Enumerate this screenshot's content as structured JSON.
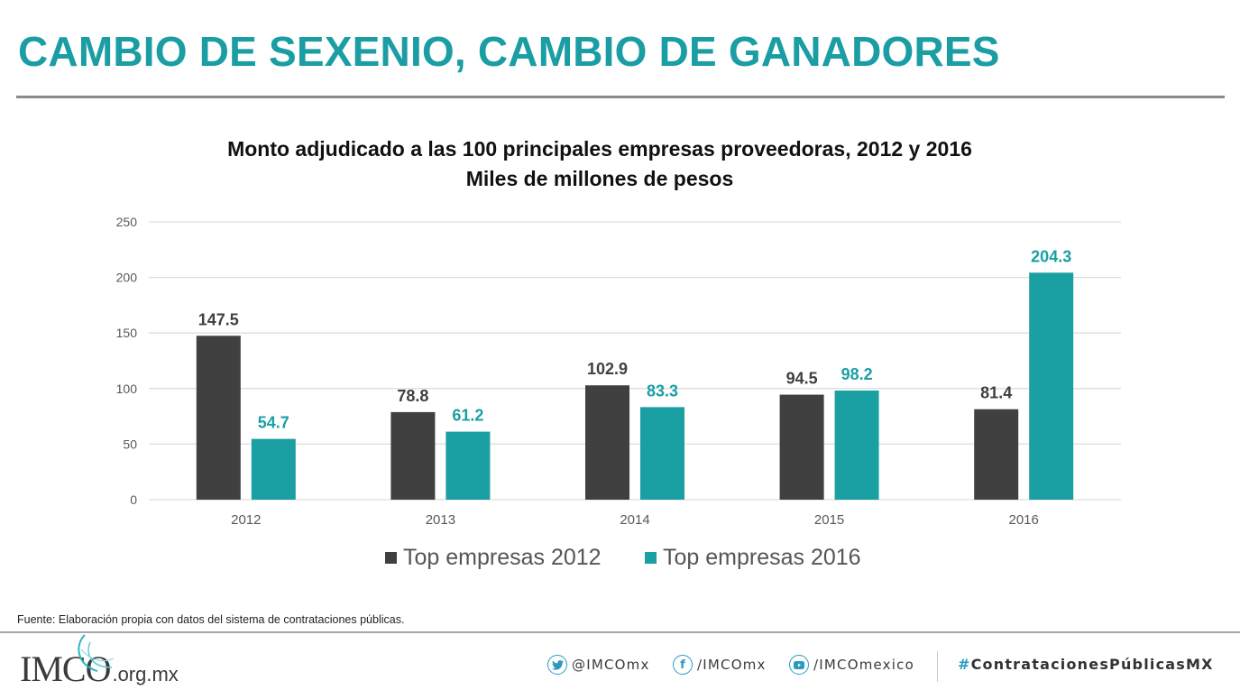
{
  "page": {
    "title": "CAMBIO DE SEXENIO, CAMBIO DE GANADORES",
    "source": "Fuente: Elaboración propia con datos del sistema de contrataciones públicas."
  },
  "colors": {
    "accent": "#1a9da3",
    "series_2012": "#404040",
    "series_2016": "#1a9fa3",
    "label_2012": "#404040",
    "label_2016": "#1a9fa3",
    "grid": "#dddddd",
    "social_icon": "#2a9ac0"
  },
  "chart_data": {
    "type": "bar",
    "title": "Monto adjudicado a las 100 principales empresas proveedoras, 2012 y 2016",
    "subtitle": "Miles de millones de pesos",
    "xlabel": "",
    "ylabel": "",
    "categories": [
      "2012",
      "2013",
      "2014",
      "2015",
      "2016"
    ],
    "series": [
      {
        "name": "Top empresas 2012",
        "values": [
          147.5,
          78.8,
          102.9,
          94.5,
          81.4
        ],
        "labels": [
          "147.5",
          "78.8",
          "102.9",
          "94.5",
          "81.4"
        ]
      },
      {
        "name": "Top empresas 2016",
        "values": [
          54.7,
          61.2,
          83.3,
          98.2,
          204.3
        ],
        "labels": [
          "54.7",
          "61.2",
          "83.3",
          "98.2",
          "204.3"
        ]
      }
    ],
    "ylim": [
      0,
      250
    ],
    "yticks": [
      0,
      50,
      100,
      150,
      200,
      250
    ],
    "ytick_labels": [
      "0",
      "50",
      "100",
      "150",
      "200",
      "250"
    ],
    "grid": true,
    "legend_position": "bottom",
    "data_labels": true
  },
  "footer": {
    "logo_text": "IMCO",
    "logo_domain": ".org.mx",
    "social": [
      {
        "icon": "twitter-icon",
        "label": "@IMCOmx"
      },
      {
        "icon": "facebook-icon",
        "label": "/IMCOmx"
      },
      {
        "icon": "youtube-icon",
        "label": "/IMCOmexico"
      }
    ],
    "hashtag_symbol": "#",
    "hashtag_text": "ContratacionesPúblicasMX"
  }
}
